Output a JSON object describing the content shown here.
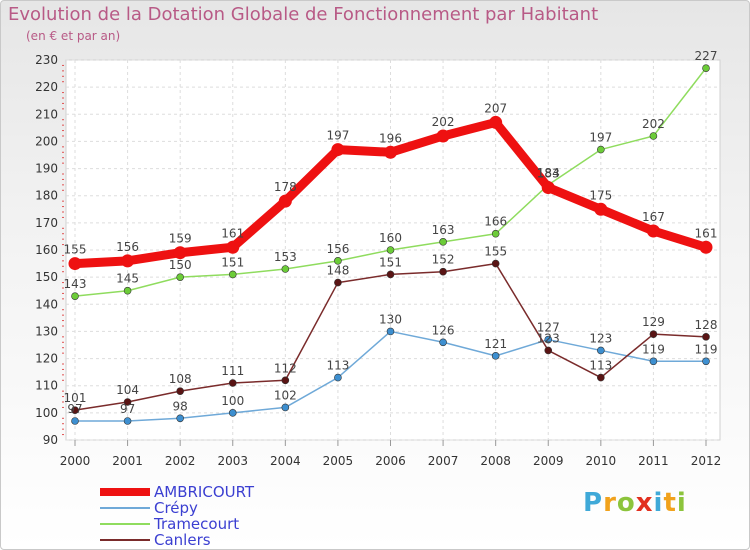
{
  "title": "Evolution de la Dotation Globale de Fonctionnement par Habitant",
  "subtitle": "(en € et par an)",
  "logo": {
    "letters": [
      "P",
      "r",
      "o",
      "x",
      "i",
      "t",
      "i"
    ],
    "colors": [
      "#3fa9d8",
      "#f1a21c",
      "#8cc43c",
      "#e2301f",
      "#3fa9d8",
      "#f1a21c",
      "#8cc43c"
    ]
  },
  "chart_data": {
    "type": "line",
    "x": [
      "2000",
      "2001",
      "2002",
      "2003",
      "2004",
      "2005",
      "2006",
      "2007",
      "2008",
      "2009",
      "2010",
      "2011",
      "2012"
    ],
    "ylim": [
      90,
      230
    ],
    "yticks": [
      90,
      100,
      110,
      120,
      130,
      140,
      150,
      160,
      170,
      180,
      190,
      200,
      210,
      220,
      230
    ],
    "grid": true,
    "legend_position": "bottom-left",
    "series": [
      {
        "name": "AMBRICOURT",
        "color": "#ee1111",
        "width": 9,
        "values": [
          155,
          156,
          159,
          161,
          178,
          197,
          196,
          202,
          207,
          183,
          175,
          167,
          161
        ]
      },
      {
        "name": "Crépy",
        "color": "#6fa9d8",
        "width": 1.5,
        "values": [
          97,
          97,
          98,
          100,
          102,
          113,
          130,
          126,
          121,
          127,
          123,
          119,
          119
        ]
      },
      {
        "name": "Tramecourt",
        "color": "#8fdc5e",
        "width": 1.5,
        "values": [
          143,
          145,
          150,
          151,
          153,
          156,
          160,
          163,
          166,
          184,
          197,
          202,
          227
        ]
      },
      {
        "name": "Canlers",
        "color": "#7a2b2b",
        "width": 1.5,
        "values": [
          101,
          104,
          108,
          111,
          112,
          148,
          151,
          152,
          155,
          123,
          113,
          129,
          128
        ]
      }
    ]
  }
}
